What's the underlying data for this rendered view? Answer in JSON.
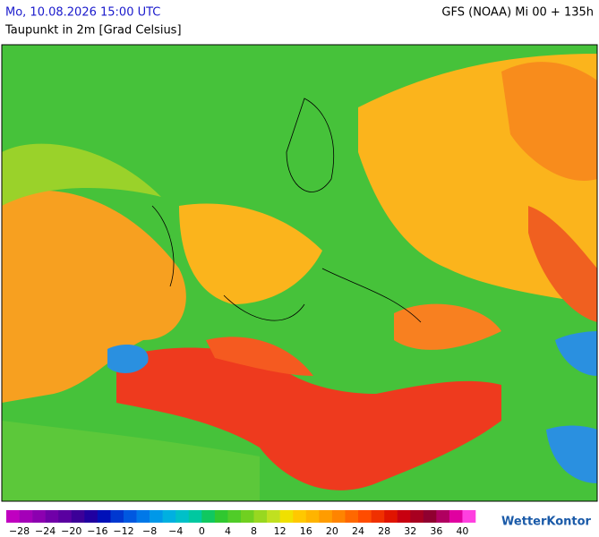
{
  "header": {
    "left": "Mo, 10.08.2026 15:00 UTC",
    "right": "GFS (NOAA) Mi 00 + 135h",
    "subtitle": "Taupunkt in 2m [Grad Celsius]"
  },
  "legend": {
    "colors": [
      "#c000c0",
      "#a400b8",
      "#8c00b0",
      "#7000a8",
      "#5a00a0",
      "#3c0098",
      "#2000a0",
      "#0010b8",
      "#0038d0",
      "#0058e0",
      "#0078e8",
      "#0098e8",
      "#00b0e0",
      "#00c0c8",
      "#00c8a0",
      "#10c860",
      "#30c830",
      "#50cc28",
      "#70d020",
      "#98d820",
      "#c0e020",
      "#f0e000",
      "#ffc800",
      "#ffb400",
      "#ff9c00",
      "#ff8400",
      "#ff6800",
      "#ff4c00",
      "#f03000",
      "#e01400",
      "#c80010",
      "#a80020",
      "#900030",
      "#b00060",
      "#e000a0",
      "#ff40e0"
    ],
    "ticks": [
      "−28",
      "−24",
      "−20",
      "−16",
      "−12",
      "−8",
      "−4",
      "0",
      "4",
      "8",
      "12",
      "16",
      "20",
      "24",
      "28",
      "32",
      "36",
      "40"
    ]
  },
  "logo": "WetterKontor"
}
